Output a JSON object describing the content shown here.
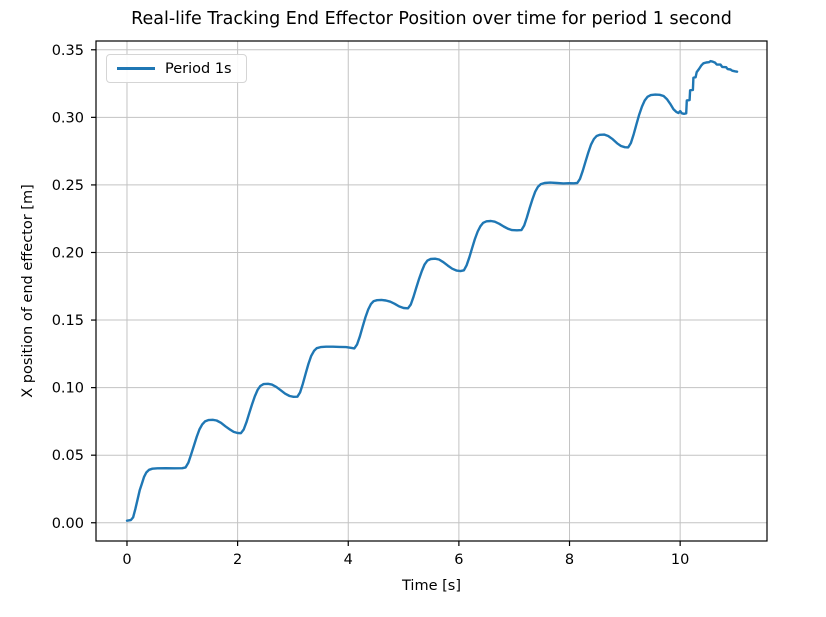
{
  "chart_data": {
    "type": "line",
    "title": "Real-life Tracking End Effector Position over time for period 1 second",
    "xlabel": "Time [s]",
    "ylabel": "X position of end effector [m]",
    "xlim": [
      -0.56,
      11.57
    ],
    "ylim": [
      -0.0135,
      0.3565
    ],
    "xticks": [
      0,
      2,
      4,
      6,
      8,
      10
    ],
    "yticks": [
      0.0,
      0.05,
      0.1,
      0.15,
      0.2,
      0.25,
      0.3,
      0.35
    ],
    "grid": true,
    "legend": {
      "position": "upper-left",
      "entries": [
        {
          "label": "Period 1s",
          "color": "#1f77b4"
        }
      ]
    },
    "series": [
      {
        "name": "Period 1s",
        "color": "#1f77b4",
        "points": [
          [
            0.0,
            0.0015
          ],
          [
            0.07,
            0.002
          ],
          [
            0.11,
            0.004
          ],
          [
            0.15,
            0.01
          ],
          [
            0.19,
            0.017
          ],
          [
            0.23,
            0.024
          ],
          [
            0.27,
            0.029
          ],
          [
            0.31,
            0.034
          ],
          [
            0.35,
            0.0372
          ],
          [
            0.4,
            0.0392
          ],
          [
            0.46,
            0.04
          ],
          [
            0.55,
            0.0403
          ],
          [
            0.7,
            0.0404
          ],
          [
            0.85,
            0.0403
          ],
          [
            1.0,
            0.0404
          ],
          [
            1.06,
            0.041
          ],
          [
            1.11,
            0.0445
          ],
          [
            1.16,
            0.0505
          ],
          [
            1.21,
            0.057
          ],
          [
            1.26,
            0.0635
          ],
          [
            1.31,
            0.069
          ],
          [
            1.36,
            0.0728
          ],
          [
            1.41,
            0.075
          ],
          [
            1.47,
            0.076
          ],
          [
            1.55,
            0.0762
          ],
          [
            1.62,
            0.0757
          ],
          [
            1.7,
            0.074
          ],
          [
            1.78,
            0.0714
          ],
          [
            1.86,
            0.069
          ],
          [
            1.93,
            0.0672
          ],
          [
            2.0,
            0.0664
          ],
          [
            2.06,
            0.0663
          ],
          [
            2.11,
            0.069
          ],
          [
            2.16,
            0.0745
          ],
          [
            2.21,
            0.081
          ],
          [
            2.26,
            0.0875
          ],
          [
            2.31,
            0.0935
          ],
          [
            2.36,
            0.0982
          ],
          [
            2.41,
            0.1012
          ],
          [
            2.47,
            0.1026
          ],
          [
            2.55,
            0.1028
          ],
          [
            2.62,
            0.1022
          ],
          [
            2.7,
            0.1005
          ],
          [
            2.78,
            0.098
          ],
          [
            2.86,
            0.0955
          ],
          [
            2.94,
            0.0938
          ],
          [
            3.01,
            0.0932
          ],
          [
            3.08,
            0.0933
          ],
          [
            3.13,
            0.0965
          ],
          [
            3.18,
            0.103
          ],
          [
            3.23,
            0.1105
          ],
          [
            3.28,
            0.1175
          ],
          [
            3.33,
            0.1235
          ],
          [
            3.38,
            0.1272
          ],
          [
            3.43,
            0.1292
          ],
          [
            3.5,
            0.13
          ],
          [
            3.6,
            0.1303
          ],
          [
            3.72,
            0.1303
          ],
          [
            3.84,
            0.1301
          ],
          [
            3.96,
            0.13
          ],
          [
            4.06,
            0.1294
          ],
          [
            4.11,
            0.129
          ],
          [
            4.16,
            0.132
          ],
          [
            4.21,
            0.138
          ],
          [
            4.26,
            0.145
          ],
          [
            4.31,
            0.152
          ],
          [
            4.36,
            0.1578
          ],
          [
            4.41,
            0.1618
          ],
          [
            4.46,
            0.164
          ],
          [
            4.52,
            0.1647
          ],
          [
            4.6,
            0.1649
          ],
          [
            4.68,
            0.1645
          ],
          [
            4.76,
            0.1636
          ],
          [
            4.84,
            0.162
          ],
          [
            4.92,
            0.1601
          ],
          [
            5.0,
            0.1589
          ],
          [
            5.08,
            0.1587
          ],
          [
            5.13,
            0.1615
          ],
          [
            5.18,
            0.1672
          ],
          [
            5.23,
            0.174
          ],
          [
            5.28,
            0.1805
          ],
          [
            5.33,
            0.1862
          ],
          [
            5.38,
            0.1912
          ],
          [
            5.43,
            0.194
          ],
          [
            5.49,
            0.1952
          ],
          [
            5.57,
            0.1954
          ],
          [
            5.64,
            0.1948
          ],
          [
            5.72,
            0.1928
          ],
          [
            5.8,
            0.1903
          ],
          [
            5.88,
            0.188
          ],
          [
            5.96,
            0.1866
          ],
          [
            6.03,
            0.1862
          ],
          [
            6.09,
            0.1868
          ],
          [
            6.14,
            0.1905
          ],
          [
            6.19,
            0.1965
          ],
          [
            6.24,
            0.2035
          ],
          [
            6.29,
            0.21
          ],
          [
            6.34,
            0.2155
          ],
          [
            6.39,
            0.2195
          ],
          [
            6.44,
            0.222
          ],
          [
            6.5,
            0.2231
          ],
          [
            6.58,
            0.2233
          ],
          [
            6.65,
            0.2228
          ],
          [
            6.73,
            0.2212
          ],
          [
            6.81,
            0.2192
          ],
          [
            6.89,
            0.2175
          ],
          [
            6.96,
            0.2166
          ],
          [
            7.05,
            0.2164
          ],
          [
            7.13,
            0.2166
          ],
          [
            7.18,
            0.22
          ],
          [
            7.23,
            0.226
          ],
          [
            7.28,
            0.233
          ],
          [
            7.33,
            0.2395
          ],
          [
            7.38,
            0.245
          ],
          [
            7.43,
            0.2487
          ],
          [
            7.48,
            0.2506
          ],
          [
            7.55,
            0.2514
          ],
          [
            7.65,
            0.2517
          ],
          [
            7.77,
            0.2514
          ],
          [
            7.89,
            0.2511
          ],
          [
            8.0,
            0.2513
          ],
          [
            8.08,
            0.2512
          ],
          [
            8.14,
            0.2514
          ],
          [
            8.19,
            0.2545
          ],
          [
            8.24,
            0.2605
          ],
          [
            8.29,
            0.2675
          ],
          [
            8.34,
            0.274
          ],
          [
            8.39,
            0.28
          ],
          [
            8.44,
            0.284
          ],
          [
            8.49,
            0.2862
          ],
          [
            8.55,
            0.2871
          ],
          [
            8.63,
            0.2872
          ],
          [
            8.7,
            0.2862
          ],
          [
            8.78,
            0.2838
          ],
          [
            8.86,
            0.2808
          ],
          [
            8.93,
            0.2788
          ],
          [
            9.0,
            0.2779
          ],
          [
            9.06,
            0.2778
          ],
          [
            9.11,
            0.281
          ],
          [
            9.16,
            0.2875
          ],
          [
            9.21,
            0.295
          ],
          [
            9.26,
            0.302
          ],
          [
            9.31,
            0.308
          ],
          [
            9.36,
            0.3125
          ],
          [
            9.41,
            0.3152
          ],
          [
            9.47,
            0.3165
          ],
          [
            9.55,
            0.3168
          ],
          [
            9.63,
            0.3167
          ],
          [
            9.7,
            0.3158
          ],
          [
            9.76,
            0.3135
          ],
          [
            9.82,
            0.31
          ],
          [
            9.88,
            0.306
          ],
          [
            9.93,
            0.304
          ],
          [
            9.97,
            0.3032
          ],
          [
            10.0,
            0.3046
          ],
          [
            10.03,
            0.303
          ],
          [
            10.07,
            0.3026
          ],
          [
            10.11,
            0.303
          ],
          [
            10.12,
            0.3125
          ],
          [
            10.17,
            0.3128
          ],
          [
            10.18,
            0.32
          ],
          [
            10.23,
            0.3203
          ],
          [
            10.24,
            0.3293
          ],
          [
            10.28,
            0.3297
          ],
          [
            10.3,
            0.3335
          ],
          [
            10.34,
            0.3358
          ],
          [
            10.38,
            0.3383
          ],
          [
            10.42,
            0.34
          ],
          [
            10.47,
            0.3406
          ],
          [
            10.52,
            0.3408
          ],
          [
            10.55,
            0.3416
          ],
          [
            10.59,
            0.3412
          ],
          [
            10.63,
            0.3405
          ],
          [
            10.66,
            0.3391
          ],
          [
            10.73,
            0.339
          ],
          [
            10.76,
            0.3373
          ],
          [
            10.83,
            0.3371
          ],
          [
            10.86,
            0.3357
          ],
          [
            10.91,
            0.3354
          ],
          [
            10.94,
            0.3345
          ],
          [
            10.99,
            0.3341
          ],
          [
            11.03,
            0.3338
          ]
        ]
      }
    ]
  },
  "colors": {
    "line": "#1f77b4",
    "grid": "#c3c3c3",
    "spine": "#000000",
    "tick": "#000000",
    "text": "#000000",
    "background": "#ffffff",
    "legend_border": "#d5d5d5"
  }
}
